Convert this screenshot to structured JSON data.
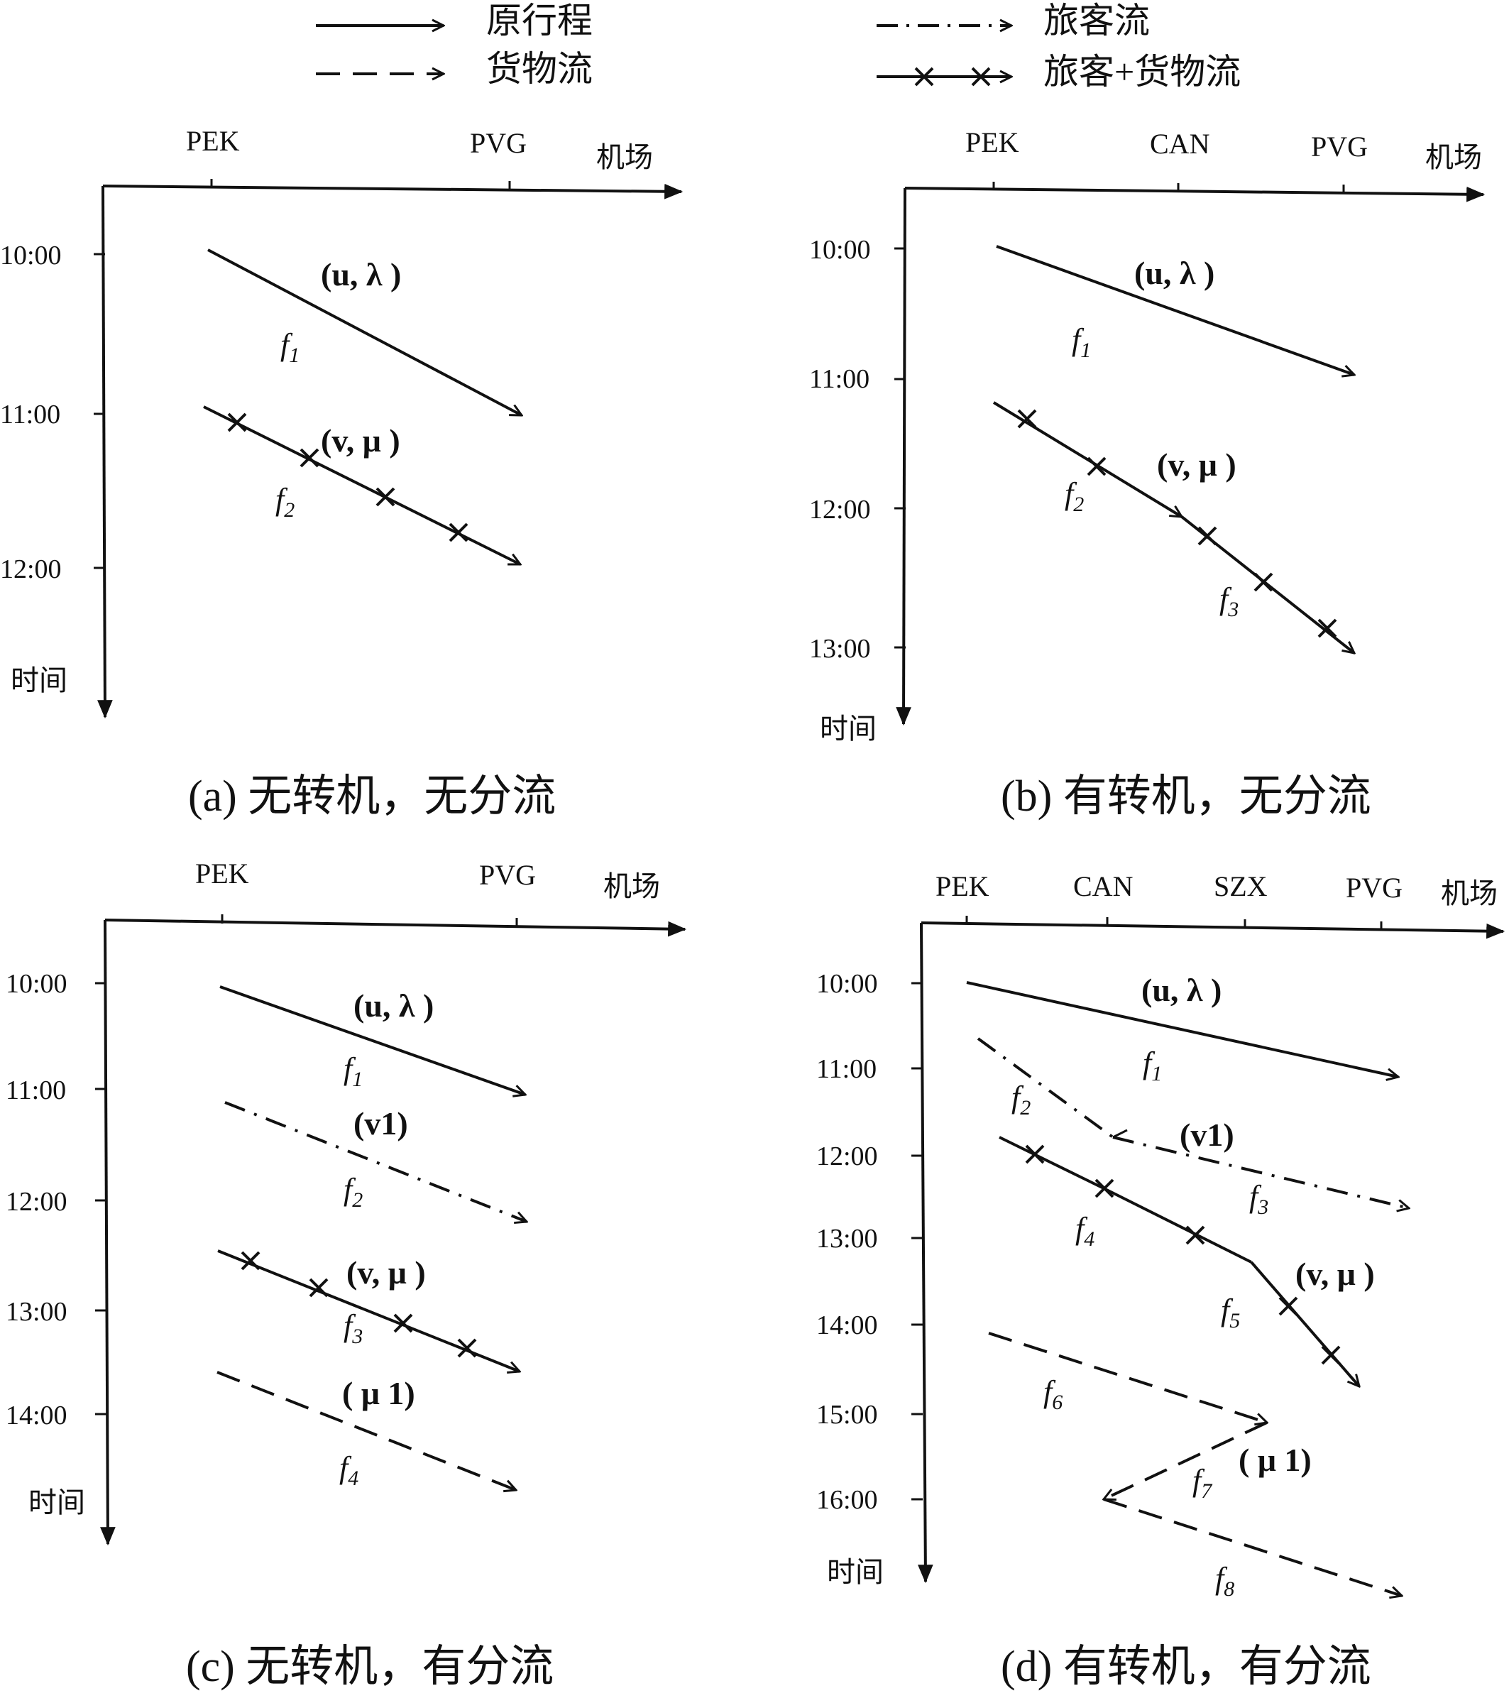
{
  "legend": [
    {
      "style": "solid",
      "label": "原行程"
    },
    {
      "style": "dash",
      "label": "货物流"
    },
    {
      "style": "dashdot",
      "label": "旅客流"
    },
    {
      "style": "cross",
      "label": "旅客+货物流"
    }
  ],
  "x_axis_name": "机场",
  "y_axis_name": "时间",
  "panels": [
    {
      "caption": "(a) 无转机，无分流",
      "airports": [
        "PEK",
        "PVG"
      ],
      "times": [
        "10:00",
        "11:00",
        "12:00"
      ],
      "segment_labels": [
        "(u, λ )",
        "(v, μ )"
      ],
      "flow_labels": [
        "f1",
        "f2"
      ]
    },
    {
      "caption": "(b) 有转机，无分流",
      "airports": [
        "PEK",
        "CAN",
        "PVG"
      ],
      "times": [
        "10:00",
        "11:00",
        "12:00",
        "13:00"
      ],
      "segment_labels": [
        "(u, λ )",
        "(v, μ )"
      ],
      "flow_labels": [
        "f1",
        "f2",
        "f3"
      ]
    },
    {
      "caption": "(c) 无转机，有分流",
      "airports": [
        "PEK",
        "PVG"
      ],
      "times": [
        "10:00",
        "11:00",
        "12:00",
        "13:00",
        "14:00"
      ],
      "segment_labels": [
        "(u, λ )",
        "(v1)",
        "(v, μ )",
        "( μ 1)"
      ],
      "flow_labels": [
        "f1",
        "f2",
        "f3",
        "f4"
      ]
    },
    {
      "caption": "(d) 有转机，有分流",
      "airports": [
        "PEK",
        "CAN",
        "SZX",
        "PVG"
      ],
      "times": [
        "10:00",
        "11:00",
        "12:00",
        "13:00",
        "14:00",
        "15:00",
        "16:00"
      ],
      "segment_labels": [
        "(u, λ )",
        "(v1)",
        "(v, μ )",
        "( μ 1)"
      ],
      "flow_labels": [
        "f1",
        "f2",
        "f3",
        "f4",
        "f5",
        "f6",
        "f7",
        "f8"
      ]
    }
  ]
}
